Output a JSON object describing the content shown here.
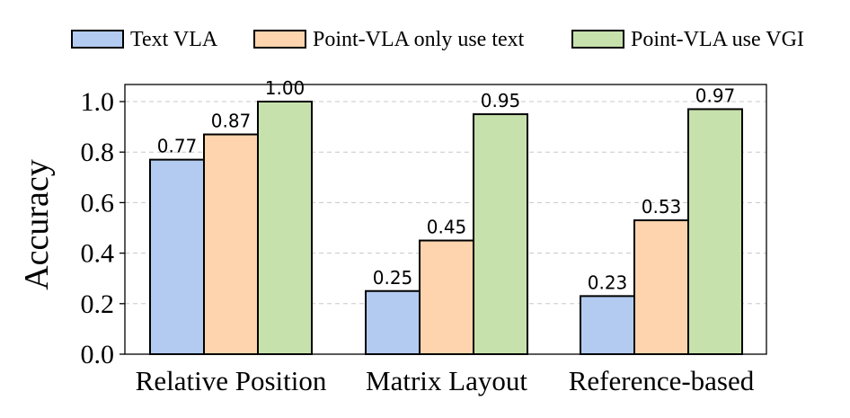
{
  "chart_data": {
    "type": "bar",
    "ylabel": "Accuracy",
    "xlabel": "",
    "title": "",
    "ylim": [
      0,
      1.0
    ],
    "yticks": [
      0.0,
      0.2,
      0.4,
      0.6,
      0.8,
      1.0
    ],
    "ytick_labels": [
      "0.0",
      "0.2",
      "0.4",
      "0.6",
      "0.8",
      "1.0"
    ],
    "grid": "horizontal dashed",
    "legend_position": "top",
    "categories": [
      "Relative Position",
      "Matrix Layout",
      "Reference-based"
    ],
    "series": [
      {
        "name": "Text VLA",
        "color": "#b3cbf0",
        "values": [
          0.77,
          0.25,
          0.23
        ],
        "labels": [
          "0.77",
          "0.25",
          "0.23"
        ]
      },
      {
        "name": "Point-VLA only use text",
        "color": "#fdd4ad",
        "values": [
          0.87,
          0.45,
          0.53
        ],
        "labels": [
          "0.87",
          "0.45",
          "0.53"
        ]
      },
      {
        "name": "Point-VLA use VGI",
        "color": "#c7e1ac",
        "values": [
          1.0,
          0.95,
          0.97
        ],
        "labels": [
          "1.00",
          "0.95",
          "0.97"
        ]
      }
    ]
  }
}
